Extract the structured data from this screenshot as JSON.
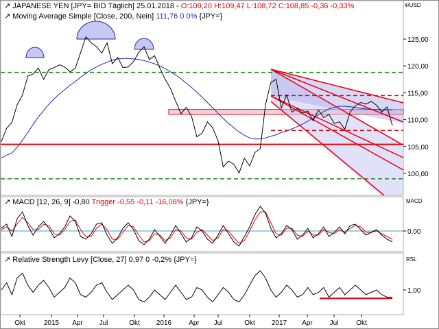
{
  "header": {
    "symbol_line": {
      "name": "JAPANESE YEN",
      "details": "[JPY= BID Täglich] 25.01.2018 -",
      "ohlc": "O:109,20 H:109,47 L:108,72",
      "close": "C:108,85 -0,36 -0,33%"
    },
    "ma_line": {
      "text": "Moving Average Simple [Close, 200, Nein]",
      "value": "111,76 0 0%",
      "tail": "{JPY=}"
    },
    "currency_label": "¥/USD"
  },
  "colors": {
    "price": "#000000",
    "ma": "#1f2a9e",
    "channel_red": "#e8000b",
    "support_green": "#1a8a1a",
    "zone_fill": "#f5d0dc",
    "channel_fill": "#c8c8f4",
    "macd_signal": "#e8000b",
    "zero_line": "#3aa0c0",
    "title_blue": "#1f2a9e",
    "title_red": "#e8000b"
  },
  "chart_data": [
    {
      "type": "line",
      "panel": "price",
      "series": [
        {
          "name": "JAPANESE YEN",
          "role": "price",
          "values": [
            105.9,
            108.4,
            109.5,
            112.8,
            114.6,
            118.1,
            118.5,
            119.6,
            117.5,
            119.3,
            119.7,
            120.2,
            119.8,
            118.9,
            119.6,
            122.5,
            125.4,
            124.3,
            123.6,
            122.4,
            124.3,
            120.4,
            121.6,
            119.7,
            119.8,
            120.8,
            122.5,
            123.6,
            121.2,
            121.9,
            119.6,
            117.5,
            115.8,
            113.4,
            111.1,
            112.3,
            110.6,
            106.8,
            107.5,
            109.6,
            108.5,
            106.1,
            101.2,
            102.3,
            101.7,
            100.1,
            102.8,
            101.4,
            103.9,
            104.6,
            112.8,
            116.9,
            117.5,
            112.2,
            114.6,
            111.4,
            112.1,
            111.2,
            111.6,
            109.8,
            111.8,
            110.4,
            111.0,
            109.3,
            109.6,
            108.2,
            111.4,
            112.6,
            113.2,
            112.9,
            113.4,
            112.7,
            111.4,
            112.4,
            108.9
          ]
        },
        {
          "name": "Moving Average Simple [Close, 200, Nein]",
          "role": "ma",
          "values": [
            102.9,
            103.4,
            103.8,
            104.9,
            106.2,
            107.6,
            109.1,
            110.5,
            111.7,
            112.9,
            113.9,
            114.8,
            115.6,
            116.4,
            117.1,
            117.9,
            118.6,
            119.3,
            119.8,
            120.3,
            120.7,
            121.1,
            121.3,
            121.4,
            121.4,
            121.3,
            121.2,
            121.0,
            120.7,
            120.4,
            120.0,
            119.5,
            118.9,
            118.3,
            117.6,
            116.8,
            116.0,
            115.1,
            114.2,
            113.2,
            112.2,
            111.2,
            110.2,
            109.3,
            108.5,
            107.7,
            107.1,
            106.6,
            106.4,
            106.4,
            106.6,
            106.9,
            107.2,
            107.6,
            107.9,
            108.3,
            108.7,
            109.2,
            109.7,
            110.3,
            110.9,
            111.5,
            112.0,
            112.3,
            112.5,
            112.5,
            112.4,
            112.3,
            112.1,
            112.0,
            111.9,
            111.9,
            111.8,
            111.8,
            111.8
          ]
        }
      ],
      "ylim": [
        96,
        128
      ],
      "yticks": [
        "100,00",
        "105,00",
        "110,00",
        "115,00",
        "120,00",
        "125,00"
      ],
      "horizontal_lines": [
        {
          "y": 118.8,
          "color": "support_green",
          "style": "dashed"
        },
        {
          "y": 99.0,
          "color": "support_green",
          "style": "dashed"
        },
        {
          "y": 105.4,
          "color": "channel_red",
          "style": "solid"
        },
        {
          "y": 114.5,
          "color": "channel_red",
          "style": "dashed"
        },
        {
          "y": 108.0,
          "color": "channel_red",
          "style": "dashed"
        }
      ],
      "zone": {
        "y_from": 111.0,
        "y_to": 111.9
      }
    },
    {
      "type": "line",
      "panel": "macd",
      "title": {
        "name": "MACD [12, 26, 9]",
        "value": "-0,80",
        "trigger": "Trigger",
        "trigger_value": "-0,55 -0,11 -16,08%",
        "tail": "{JPY=}"
      },
      "right_label": "MACD",
      "yticks": [
        "0,00"
      ],
      "ylim": [
        -1.9,
        2.2
      ],
      "series": [
        {
          "name": "MACD",
          "values": [
            0.2,
            0.5,
            -0.4,
            0.9,
            1.4,
            0.4,
            -0.3,
            0.3,
            0.7,
            0.2,
            -0.5,
            -0.2,
            0.3,
            1.1,
            0.7,
            -0.4,
            -0.6,
            -0.2,
            0.5,
            0.6,
            -0.3,
            -0.9,
            -0.5,
            0.2,
            0.6,
            0.1,
            -0.7,
            -1.0,
            -0.6,
            0.1,
            -0.4,
            -0.9,
            -0.3,
            0.4,
            -0.2,
            -0.8,
            -0.5,
            0.3,
            0.0,
            -0.6,
            -0.9,
            -0.3,
            0.4,
            -0.2,
            -0.8,
            -1.1,
            -0.4,
            0.3,
            1.2,
            1.8,
            1.3,
            0.2,
            -0.5,
            -0.2,
            0.4,
            0.1,
            -0.6,
            -0.3,
            0.2,
            -0.5,
            -0.2,
            0.3,
            -0.4,
            -0.1,
            0.3,
            -0.2,
            0.4,
            0.5,
            0.1,
            -0.3,
            -0.1,
            0.1,
            -0.3,
            -0.6,
            -0.8
          ]
        },
        {
          "name": "Trigger",
          "values": [
            0.1,
            0.3,
            0.0,
            0.5,
            1.0,
            0.6,
            0.1,
            0.1,
            0.5,
            0.4,
            -0.2,
            -0.3,
            0.1,
            0.7,
            0.8,
            0.1,
            -0.4,
            -0.4,
            0.2,
            0.5,
            0.1,
            -0.6,
            -0.6,
            -0.1,
            0.4,
            0.3,
            -0.3,
            -0.8,
            -0.7,
            -0.2,
            -0.3,
            -0.7,
            -0.5,
            0.1,
            0.0,
            -0.5,
            -0.6,
            -0.1,
            0.1,
            -0.3,
            -0.7,
            -0.5,
            0.1,
            0.0,
            -0.5,
            -0.9,
            -0.7,
            0.0,
            0.8,
            1.4,
            1.4,
            0.6,
            -0.2,
            -0.3,
            0.2,
            0.2,
            -0.3,
            -0.4,
            0.0,
            -0.3,
            -0.3,
            0.1,
            -0.1,
            -0.2,
            0.1,
            -0.1,
            0.2,
            0.4,
            0.3,
            -0.1,
            -0.1,
            0.0,
            -0.2,
            -0.4,
            -0.6
          ]
        }
      ]
    },
    {
      "type": "line",
      "panel": "rsl",
      "title": {
        "name": "Relative Strength Levy [Close, 27]",
        "value": "0,97 0 -0,2%",
        "tail": "{JPY=}"
      },
      "right_label": "RSL",
      "yticks": [
        "1,00"
      ],
      "ylim": [
        0.92,
        1.1
      ],
      "series": [
        {
          "name": "Relative Strength Levy",
          "values": [
            1.0,
            1.03,
            0.98,
            1.05,
            1.07,
            1.02,
            0.99,
            1.02,
            1.04,
            1.01,
            0.97,
            0.99,
            1.01,
            1.05,
            1.03,
            0.98,
            0.97,
            0.99,
            1.02,
            1.03,
            0.99,
            0.96,
            0.98,
            1.0,
            1.02,
            1.0,
            0.96,
            0.95,
            0.97,
            1.0,
            0.98,
            0.96,
            0.99,
            1.02,
            0.99,
            0.96,
            0.97,
            1.01,
            1.0,
            0.97,
            0.95,
            0.98,
            1.01,
            0.99,
            0.96,
            0.95,
            0.98,
            1.02,
            1.06,
            1.08,
            1.05,
            1.0,
            0.97,
            0.99,
            1.02,
            1.0,
            0.97,
            0.98,
            1.01,
            0.98,
            0.99,
            1.01,
            0.97,
            0.99,
            1.01,
            0.98,
            1.0,
            1.02,
            1.0,
            0.98,
            0.99,
            1.0,
            0.98,
            0.97,
            0.97
          ]
        }
      ],
      "support_y": 0.965
    }
  ],
  "x_axis": {
    "labels": [
      "Okt",
      "2015",
      "Apr",
      "Jul",
      "Okt",
      "2016",
      "Apr",
      "Jul",
      "Okt",
      "2017",
      "Apr",
      "Jul",
      "Okt"
    ]
  }
}
